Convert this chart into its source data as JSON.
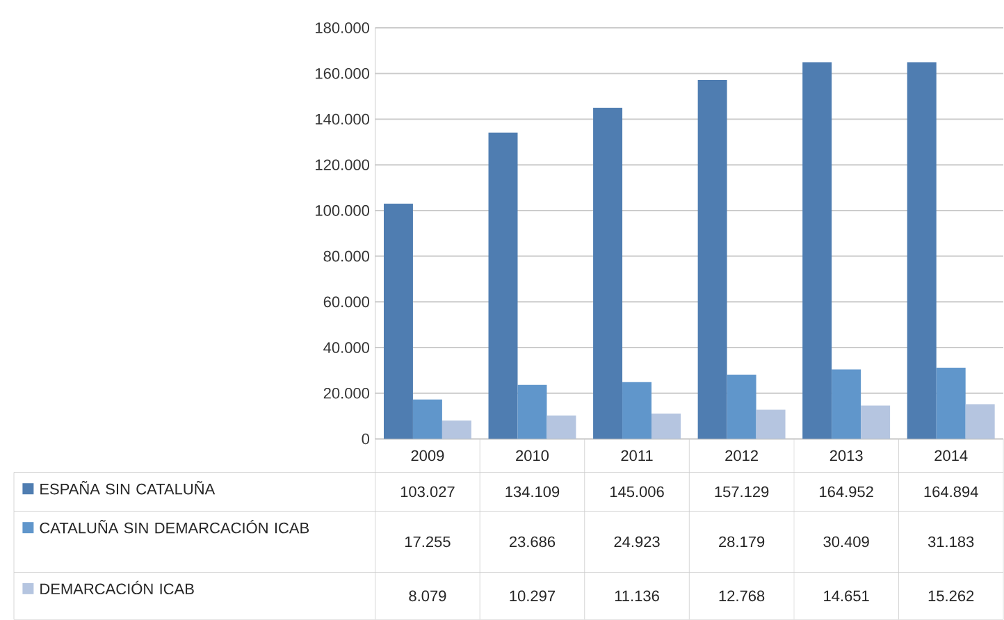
{
  "chart_data": {
    "type": "bar",
    "categories": [
      "2009",
      "2010",
      "2011",
      "2012",
      "2013",
      "2014"
    ],
    "series": [
      {
        "name": "ESPAÑA SIN CATALUÑA",
        "color": "#4f7db1",
        "values": [
          103027,
          134109,
          145006,
          157129,
          164952,
          164894
        ],
        "value_labels": [
          "103.027",
          "134.109",
          "145.006",
          "157.129",
          "164.952",
          "164.894"
        ]
      },
      {
        "name": "CATALUÑA SIN DEMARCACIÓN ICAB",
        "color": "#6096cb",
        "values": [
          17255,
          23686,
          24923,
          28179,
          30409,
          31183
        ],
        "value_labels": [
          "17.255",
          "23.686",
          "24.923",
          "28.179",
          "30.409",
          "31.183"
        ]
      },
      {
        "name": "DEMARCACIÓN ICAB",
        "color": "#b5c5e0",
        "values": [
          8079,
          10297,
          11136,
          12768,
          14651,
          15262
        ],
        "value_labels": [
          "8.079",
          "10.297",
          "11.136",
          "12.768",
          "14.651",
          "15.262"
        ]
      }
    ],
    "ylim": [
      0,
      180000
    ],
    "yticks": [
      0,
      {
        "value": 20000,
        "label": "20.000"
      },
      {
        "value": 40000,
        "label": "40.000"
      },
      {
        "value": 60000,
        "label": "60.000"
      },
      {
        "value": 80000,
        "label": "80.000"
      },
      {
        "value": 100000,
        "label": "100.000"
      },
      {
        "value": 120000,
        "label": "120.000"
      },
      {
        "value": 140000,
        "label": "140.000"
      },
      {
        "value": 160000,
        "label": "160.000"
      },
      {
        "value": 180000,
        "label": "180.000"
      }
    ],
    "grid": "y",
    "legend": "bottom"
  }
}
